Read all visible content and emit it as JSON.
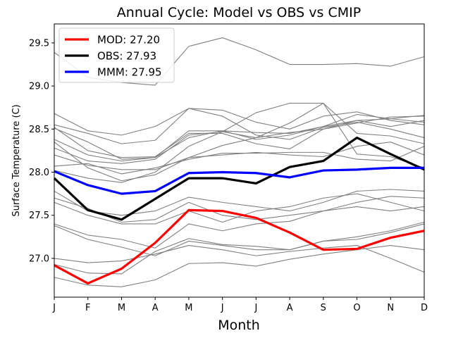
{
  "chart_data": {
    "type": "line",
    "title": "Annual Cycle: Model vs OBS vs CMIP",
    "xlabel": "Month",
    "ylabel": "Surface Temperature (C)",
    "categories": [
      "J",
      "F",
      "M",
      "A",
      "M",
      "J",
      "J",
      "A",
      "S",
      "O",
      "N",
      "D"
    ],
    "ylim": [
      26.55,
      29.72
    ],
    "yticks": [
      27.0,
      27.5,
      28.0,
      28.5,
      29.0,
      29.5
    ],
    "ytick_labels": [
      "27.0",
      "27.5",
      "28.0",
      "28.5",
      "29.0",
      "29.5"
    ],
    "grid": false,
    "legend_position": "top-left",
    "series": [
      {
        "name": "MOD: 27.20",
        "color": "#ff0000",
        "values": [
          26.92,
          26.71,
          26.88,
          27.18,
          27.56,
          27.55,
          27.47,
          27.3,
          27.1,
          27.11,
          27.24,
          27.32
        ]
      },
      {
        "name": "OBS: 27.93",
        "color": "#000000",
        "values": [
          27.93,
          27.56,
          27.45,
          27.69,
          27.93,
          27.93,
          27.87,
          28.06,
          28.13,
          28.4,
          28.21,
          28.03
        ]
      },
      {
        "name": "MMM: 27.95",
        "color": "#0000ff",
        "values": [
          28.01,
          27.85,
          27.75,
          27.78,
          27.99,
          28.0,
          27.99,
          27.94,
          28.02,
          28.03,
          28.05,
          28.05
        ]
      }
    ],
    "cmip_members": {
      "color": "#808080",
      "series": [
        [
          29.39,
          29.1,
          29.04,
          29.01,
          29.46,
          29.56,
          29.42,
          29.25,
          29.25,
          29.26,
          29.23,
          29.34
        ],
        [
          28.68,
          28.48,
          28.43,
          28.53,
          28.74,
          28.72,
          28.58,
          28.5,
          28.65,
          28.7,
          28.6,
          28.55
        ],
        [
          28.55,
          28.45,
          28.33,
          28.37,
          28.74,
          28.65,
          28.43,
          28.38,
          28.52,
          28.58,
          28.5,
          28.4
        ],
        [
          28.52,
          28.25,
          28.17,
          28.18,
          28.45,
          28.45,
          28.33,
          28.27,
          28.5,
          28.6,
          28.62,
          28.66
        ],
        [
          28.38,
          28.2,
          28.13,
          28.17,
          28.4,
          28.48,
          28.38,
          28.43,
          28.53,
          28.6,
          28.53,
          28.6
        ],
        [
          28.07,
          28.1,
          27.98,
          28.05,
          28.15,
          28.22,
          28.22,
          28.23,
          28.23,
          28.15,
          28.13,
          28.3
        ],
        [
          28.35,
          28.05,
          27.9,
          27.97,
          28.17,
          28.2,
          28.23,
          28.2,
          28.18,
          28.3,
          28.35,
          28.2
        ],
        [
          28.28,
          28.13,
          28.1,
          28.15,
          28.43,
          28.47,
          28.4,
          28.46,
          28.5,
          28.57,
          28.64,
          28.65
        ],
        [
          28.51,
          28.35,
          28.15,
          28.17,
          28.48,
          28.48,
          28.46,
          28.45,
          28.53,
          28.67,
          28.62,
          28.58
        ],
        [
          28.2,
          28.08,
          28.03,
          28.03,
          28.17,
          28.31,
          28.4,
          28.57,
          28.8,
          28.45,
          28.42,
          28.33
        ],
        [
          28.02,
          27.93,
          27.88,
          28.0,
          28.3,
          28.47,
          28.69,
          28.8,
          28.8,
          28.21,
          28.18,
          28.05
        ],
        [
          27.78,
          27.55,
          27.5,
          27.55,
          27.71,
          27.65,
          27.6,
          27.55,
          27.65,
          27.78,
          27.8,
          27.78
        ],
        [
          27.7,
          27.58,
          27.42,
          27.45,
          27.65,
          27.5,
          27.45,
          27.5,
          27.55,
          27.65,
          27.72,
          27.7
        ],
        [
          27.65,
          27.5,
          27.4,
          27.4,
          27.55,
          27.42,
          27.55,
          27.6,
          27.7,
          27.75,
          27.65,
          27.55
        ],
        [
          27.4,
          27.27,
          27.22,
          27.12,
          27.4,
          27.32,
          27.4,
          27.43,
          27.55,
          27.6,
          27.55,
          27.6
        ],
        [
          27.38,
          27.22,
          27.13,
          27.03,
          27.2,
          27.15,
          27.1,
          27.1,
          27.2,
          27.22,
          27.3,
          27.4
        ],
        [
          26.93,
          26.83,
          26.82,
          27.08,
          27.23,
          27.16,
          27.14,
          27.1,
          27.2,
          27.25,
          27.32,
          27.42
        ],
        [
          26.78,
          26.69,
          26.67,
          26.75,
          26.94,
          26.95,
          26.91,
          26.99,
          27.05,
          27.1,
          27.15,
          27.1
        ],
        [
          27.0,
          26.95,
          26.97,
          27.05,
          27.15,
          27.1,
          27.03,
          27.08,
          27.12,
          27.15,
          27.0,
          26.84
        ]
      ]
    }
  }
}
